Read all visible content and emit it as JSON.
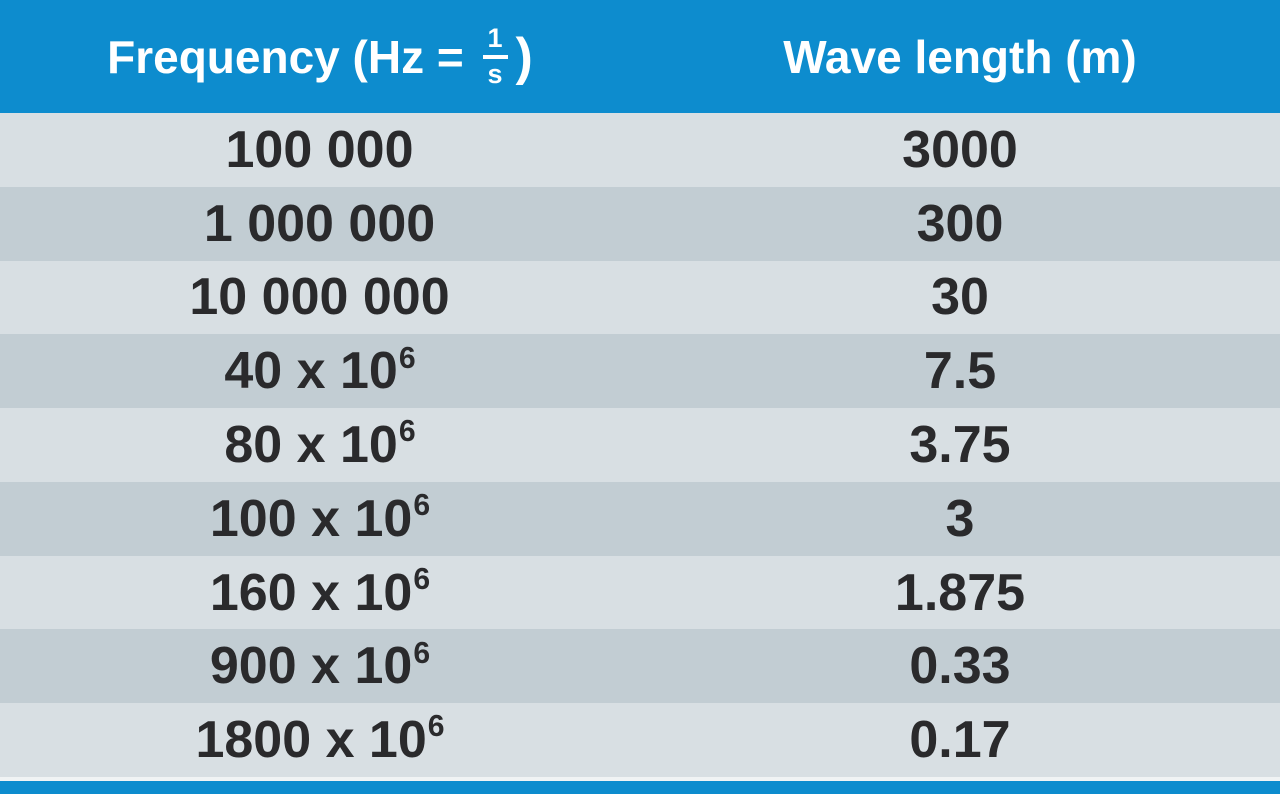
{
  "colors": {
    "header_blue": "#0d8cce",
    "header_text": "#ffffff",
    "row_light": "#d8dfe3",
    "row_dark": "#c2cdd3",
    "separator": "#f0f3f4",
    "text_dark": "#2a2a2c"
  },
  "header": {
    "frequency_prefix": "Frequency (Hz = ",
    "fraction_numerator": "1",
    "fraction_denominator": "s",
    "frequency_suffix": ")",
    "wavelength_label": "Wave length (m)"
  },
  "table": {
    "rows": [
      {
        "frequency_base": "100 000",
        "frequency_exp": "",
        "wavelength": "3000"
      },
      {
        "frequency_base": "1 000 000",
        "frequency_exp": "",
        "wavelength": "300"
      },
      {
        "frequency_base": "10 000 000",
        "frequency_exp": "",
        "wavelength": "30"
      },
      {
        "frequency_base": "40 x 10",
        "frequency_exp": "6",
        "wavelength": "7.5"
      },
      {
        "frequency_base": "80 x 10",
        "frequency_exp": "6",
        "wavelength": "3.75"
      },
      {
        "frequency_base": "100 x 10",
        "frequency_exp": "6",
        "wavelength": "3"
      },
      {
        "frequency_base": "160 x 10",
        "frequency_exp": "6",
        "wavelength": "1.875"
      },
      {
        "frequency_base": "900 x 10",
        "frequency_exp": "6",
        "wavelength": "0.33"
      },
      {
        "frequency_base": "1800 x 10",
        "frequency_exp": "6",
        "wavelength": "0.17"
      }
    ]
  },
  "chart_data": {
    "type": "table",
    "columns": [
      "Frequency (Hz = 1/s)",
      "Wave length (m)"
    ],
    "rows": [
      [
        "100 000",
        "3000"
      ],
      [
        "1 000 000",
        "300"
      ],
      [
        "10 000 000",
        "30"
      ],
      [
        "40 x 10^6",
        "7.5"
      ],
      [
        "80 x 10^6",
        "3.75"
      ],
      [
        "100 x 10^6",
        "3"
      ],
      [
        "160 x 10^6",
        "1.875"
      ],
      [
        "900 x 10^6",
        "0.33"
      ],
      [
        "1800 x 10^6",
        "0.17"
      ]
    ],
    "frequency_hz": [
      100000,
      1000000,
      10000000,
      40000000,
      80000000,
      100000000,
      160000000,
      900000000,
      1800000000
    ],
    "wavelength_m": [
      3000,
      300,
      30,
      7.5,
      3.75,
      3,
      1.875,
      0.33,
      0.17
    ]
  }
}
